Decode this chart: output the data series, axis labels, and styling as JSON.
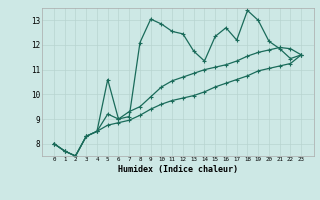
{
  "xlabel": "Humidex (Indice chaleur)",
  "bg_color": "#cde8e5",
  "grid_color": "#b8d4d0",
  "line_color": "#1a6b5a",
  "x_values": [
    0,
    1,
    2,
    3,
    4,
    5,
    6,
    7,
    8,
    9,
    10,
    11,
    12,
    13,
    14,
    15,
    16,
    17,
    18,
    19,
    20,
    21,
    22,
    23
  ],
  "line1": [
    8.0,
    7.7,
    7.5,
    8.3,
    8.5,
    10.6,
    9.0,
    9.1,
    12.1,
    13.05,
    12.85,
    12.55,
    12.45,
    11.75,
    11.35,
    12.35,
    12.7,
    12.2,
    13.4,
    13.0,
    12.15,
    11.85,
    11.45,
    11.6
  ],
  "line2": [
    8.0,
    7.7,
    7.5,
    8.3,
    8.5,
    9.2,
    9.0,
    9.3,
    9.5,
    9.9,
    10.3,
    10.55,
    10.7,
    10.85,
    11.0,
    11.1,
    11.2,
    11.35,
    11.55,
    11.7,
    11.8,
    11.9,
    11.85,
    11.6
  ],
  "line3": [
    8.0,
    7.7,
    7.5,
    8.3,
    8.5,
    8.75,
    8.85,
    8.95,
    9.15,
    9.4,
    9.6,
    9.75,
    9.85,
    9.95,
    10.1,
    10.3,
    10.45,
    10.6,
    10.75,
    10.95,
    11.05,
    11.15,
    11.25,
    11.6
  ],
  "ylim": [
    7.5,
    13.5
  ],
  "yticks": [
    8,
    9,
    10,
    11,
    12,
    13
  ],
  "xticks": [
    0,
    1,
    2,
    3,
    4,
    5,
    6,
    7,
    8,
    9,
    10,
    11,
    12,
    13,
    14,
    15,
    16,
    17,
    18,
    19,
    20,
    21,
    22,
    23
  ],
  "marker": "+"
}
